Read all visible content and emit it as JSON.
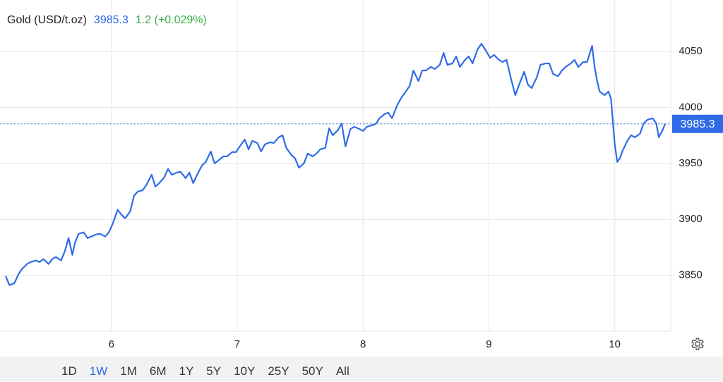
{
  "chart_data": {
    "type": "line",
    "title": "Gold (USD/t.oz)",
    "last_price": 3985.3,
    "change": "1.2 (+0.029%)",
    "color": "#2f6be8",
    "change_color": "#3cb043",
    "grid": true,
    "x": [
      5.16,
      5.19,
      5.23,
      5.26,
      5.29,
      5.33,
      5.36,
      5.4,
      5.43,
      5.46,
      5.5,
      5.53,
      5.56,
      5.6,
      5.63,
      5.66,
      5.69,
      5.71,
      5.74,
      5.78,
      5.81,
      5.84,
      5.88,
      5.91,
      5.95,
      5.98,
      6.01,
      6.05,
      6.08,
      6.11,
      6.15,
      6.18,
      6.21,
      6.25,
      6.28,
      6.32,
      6.35,
      6.38,
      6.42,
      6.45,
      6.48,
      6.52,
      6.55,
      6.59,
      6.62,
      6.65,
      6.69,
      6.72,
      6.75,
      6.79,
      6.82,
      6.85,
      6.89,
      6.92,
      6.96,
      6.99,
      7.02,
      7.06,
      7.09,
      7.12,
      7.16,
      7.19,
      7.22,
      7.26,
      7.29,
      7.33,
      7.36,
      7.39,
      7.43,
      7.46,
      7.49,
      7.53,
      7.56,
      7.6,
      7.63,
      7.66,
      7.7,
      7.73,
      7.76,
      7.8,
      7.83,
      7.86,
      7.9,
      7.93,
      7.97,
      8.0,
      8.03,
      8.07,
      8.1,
      8.13,
      8.17,
      8.2,
      8.23,
      8.27,
      8.3,
      8.34,
      8.37,
      8.4,
      8.44,
      8.47,
      8.5,
      8.54,
      8.57,
      8.61,
      8.64,
      8.67,
      8.71,
      8.74,
      8.77,
      8.81,
      8.84,
      8.87,
      8.91,
      8.94,
      8.97,
      9.01,
      9.04,
      9.08,
      9.11,
      9.14,
      9.18,
      9.21,
      9.24,
      9.28,
      9.31,
      9.34,
      9.38,
      9.41,
      9.45,
      9.48,
      9.51,
      9.55,
      9.58,
      9.61,
      9.65,
      9.68,
      9.71,
      9.75,
      9.78,
      9.82,
      9.84,
      9.86,
      9.88,
      9.92,
      9.95,
      9.97,
      10.0,
      10.02,
      10.04,
      10.06,
      10.1,
      10.13,
      10.16,
      10.2,
      10.23,
      10.26,
      10.3,
      10.33,
      10.35,
      10.38,
      10.4
    ],
    "values": [
      3849.4,
      3841.2,
      3843.1,
      3850.6,
      3855.7,
      3860.1,
      3861.9,
      3863.2,
      3861.9,
      3864.5,
      3860.1,
      3864.5,
      3866.4,
      3863.2,
      3871.4,
      3883.3,
      3868.2,
      3878.9,
      3887.1,
      3888.4,
      3883.3,
      3884.6,
      3886.5,
      3887.1,
      3884.6,
      3888.4,
      3895.9,
      3908.5,
      3904.1,
      3900.9,
      3907.2,
      3921.1,
      3924.8,
      3926.1,
      3931.1,
      3939.9,
      3929.2,
      3932.4,
      3937.4,
      3945.0,
      3939.9,
      3941.8,
      3942.5,
      3936.8,
      3941.8,
      3932.4,
      3941.8,
      3948.1,
      3951.3,
      3960.7,
      3950.0,
      3952.5,
      3956.3,
      3956.3,
      3960.1,
      3960.1,
      3965.1,
      3971.4,
      3962.6,
      3970.1,
      3968.2,
      3960.7,
      3967.0,
      3968.9,
      3968.2,
      3973.3,
      3975.2,
      3963.8,
      3957.5,
      3954.4,
      3946.2,
      3950.0,
      3958.8,
      3956.3,
      3958.8,
      3962.6,
      3963.8,
      3981.4,
      3975.2,
      3979.6,
      3985.8,
      3965.1,
      3980.8,
      3982.7,
      3980.8,
      3978.9,
      3982.7,
      3984.0,
      3985.2,
      3990.3,
      3994.0,
      3995.3,
      3990.3,
      4001.6,
      4007.9,
      4014.2,
      4019.2,
      4033.0,
      4023.6,
      4033.0,
      4033.0,
      4036.2,
      4034.3,
      4038.1,
      4048.7,
      4038.1,
      4039.3,
      4045.6,
      4036.2,
      4042.5,
      4045.6,
      4039.3,
      4051.9,
      4056.9,
      4051.9,
      4044.3,
      4046.9,
      4042.5,
      4040.6,
      4042.5,
      4023.6,
      4011.0,
      4020.4,
      4031.8,
      4020.4,
      4017.3,
      4026.7,
      4038.1,
      4039.3,
      4039.3,
      4029.9,
      4028.0,
      4033.0,
      4036.2,
      4039.3,
      4042.5,
      4036.2,
      4040.6,
      4040.6,
      4055.0,
      4036.2,
      4023.6,
      4014.2,
      4011.0,
      4014.2,
      4007.9,
      3967.0,
      3951.3,
      3954.4,
      3960.7,
      3970.1,
      3975.2,
      3973.3,
      3976.4,
      3985.8,
      3989.0,
      3990.3,
      3985.8,
      3973.3,
      3979.6,
      3985.3
    ],
    "xlim": [
      5.115,
      10.445
    ],
    "xticks": [
      6,
      7,
      8,
      9,
      10
    ],
    "ylim": [
      3800,
      4096
    ],
    "yticks": [
      3850,
      3900,
      3950,
      4000,
      4050
    ]
  },
  "range_buttons": [
    "1D",
    "1W",
    "1M",
    "6M",
    "1Y",
    "5Y",
    "10Y",
    "25Y",
    "50Y",
    "All"
  ],
  "active_range": "1W"
}
